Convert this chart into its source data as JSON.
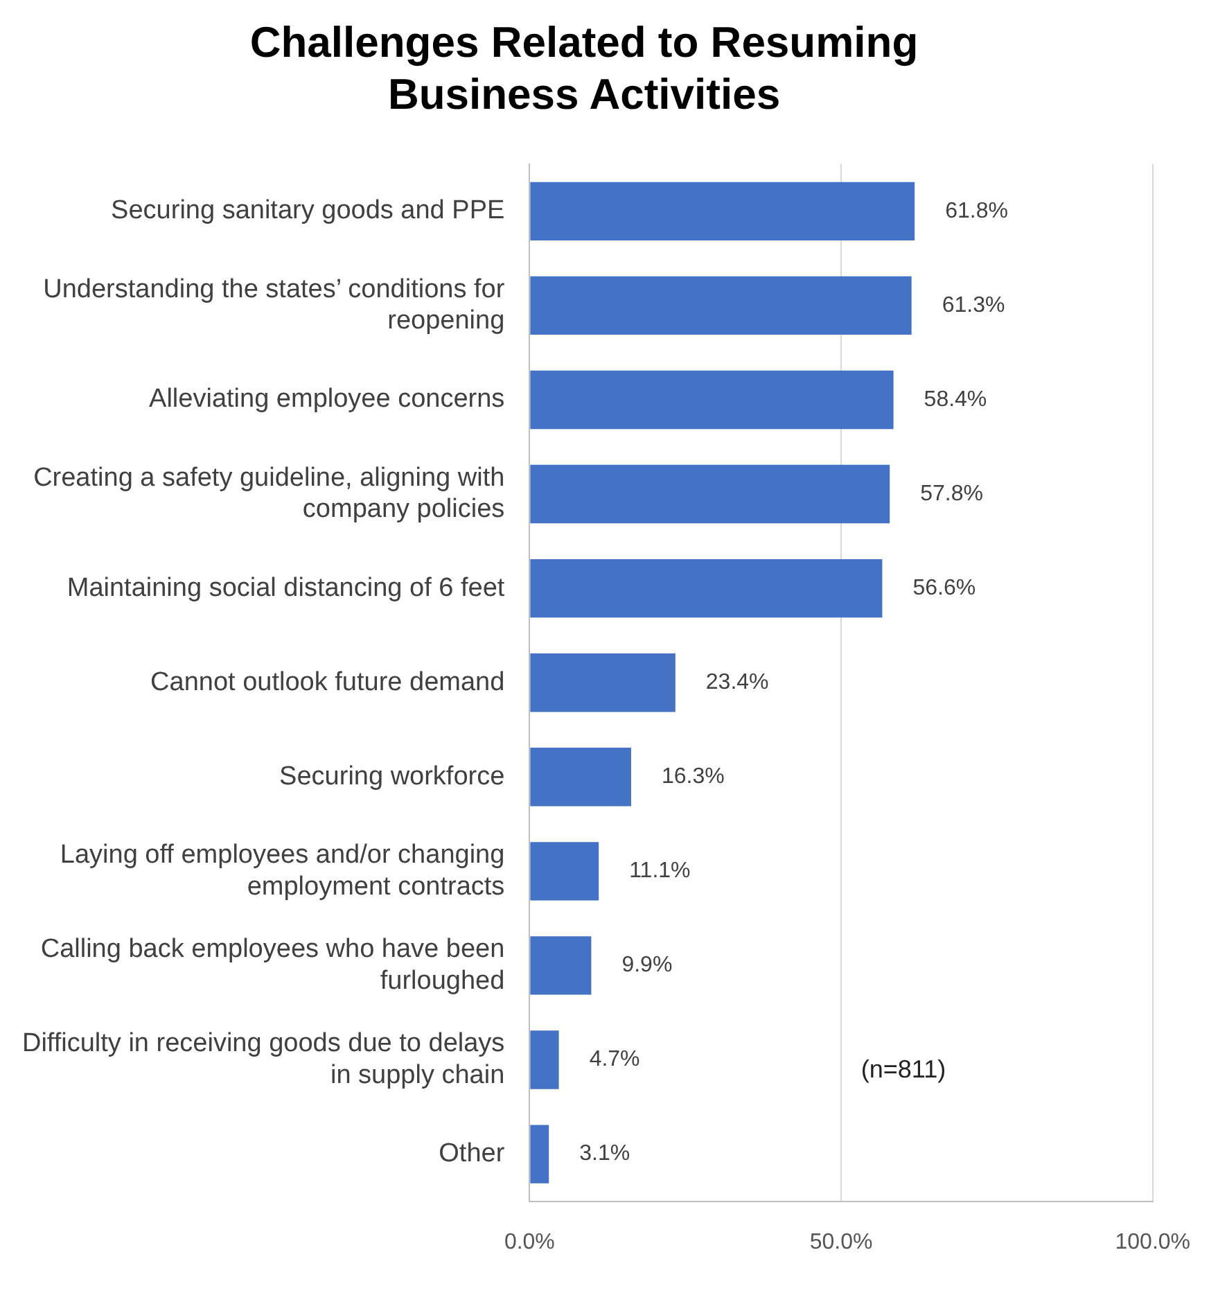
{
  "chart_data": {
    "type": "bar",
    "orientation": "horizontal",
    "title": "Challenges Related to Resuming Business Activities",
    "categories": [
      "Securing sanitary goods and PPE",
      "Understanding the states’ conditions for reopening",
      "Alleviating employee concerns",
      "Creating a safety guideline, aligning with company policies",
      "Maintaining social distancing of 6 feet",
      "Cannot outlook future demand",
      "Securing workforce",
      "Laying off employees and/or changing employment contracts",
      "Calling back employees who have been furloughed",
      "Difficulty in receiving goods due to delays in supply chain",
      "Other"
    ],
    "values": [
      61.8,
      61.3,
      58.4,
      57.8,
      56.6,
      23.4,
      16.3,
      11.1,
      9.9,
      4.7,
      3.1
    ],
    "value_labels": [
      "61.8%",
      "61.3%",
      "58.4%",
      "57.8%",
      "56.6%",
      "23.4%",
      "16.3%",
      "11.1%",
      "9.9%",
      "4.7%",
      "3.1%"
    ],
    "color": "#4472c4",
    "xlim": [
      0,
      100
    ],
    "xticks": [
      {
        "value": 0,
        "label": "0.0%"
      },
      {
        "value": 50,
        "label": "50.0%"
      },
      {
        "value": 100,
        "label": "100.0%"
      }
    ],
    "grid": "x",
    "legend": false,
    "annotations": [
      "(n=811)"
    ]
  }
}
